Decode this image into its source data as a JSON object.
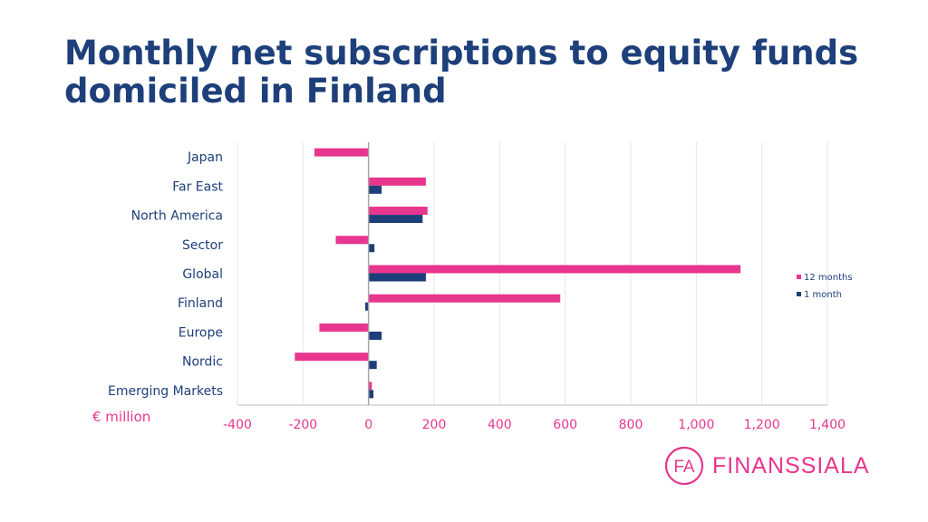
{
  "slide": {
    "title": "Monthly net subscriptions to equity funds domiciled in Finland",
    "unit_label": "€ million"
  },
  "brand": {
    "logo_mark": "FA",
    "name": "FINANSSIALA",
    "color": "#e8358e"
  },
  "chart_data": {
    "type": "bar",
    "orientation": "horizontal",
    "categories": [
      "Japan",
      "Far East",
      "North America",
      "Sector",
      "Global",
      "Finland",
      "Europe",
      "Nordic",
      "Emerging Markets"
    ],
    "series": [
      {
        "name": "12 months",
        "color": "#e8358e",
        "values": [
          -165,
          175,
          180,
          -100,
          1135,
          585,
          -150,
          -225,
          10
        ]
      },
      {
        "name": "1 month",
        "color": "#1d3f7a",
        "values": [
          0,
          40,
          165,
          18,
          175,
          -10,
          40,
          25,
          15
        ]
      }
    ],
    "xlim": [
      -400,
      1400
    ],
    "xticks": [
      -400,
      -200,
      0,
      200,
      400,
      600,
      800,
      1000,
      1200,
      1400
    ],
    "xtick_labels": [
      "-400",
      "-200",
      "0",
      "200",
      "400",
      "600",
      "800",
      "1,000",
      "1,200",
      "1,400"
    ],
    "grid": true,
    "legend_position": "right"
  }
}
